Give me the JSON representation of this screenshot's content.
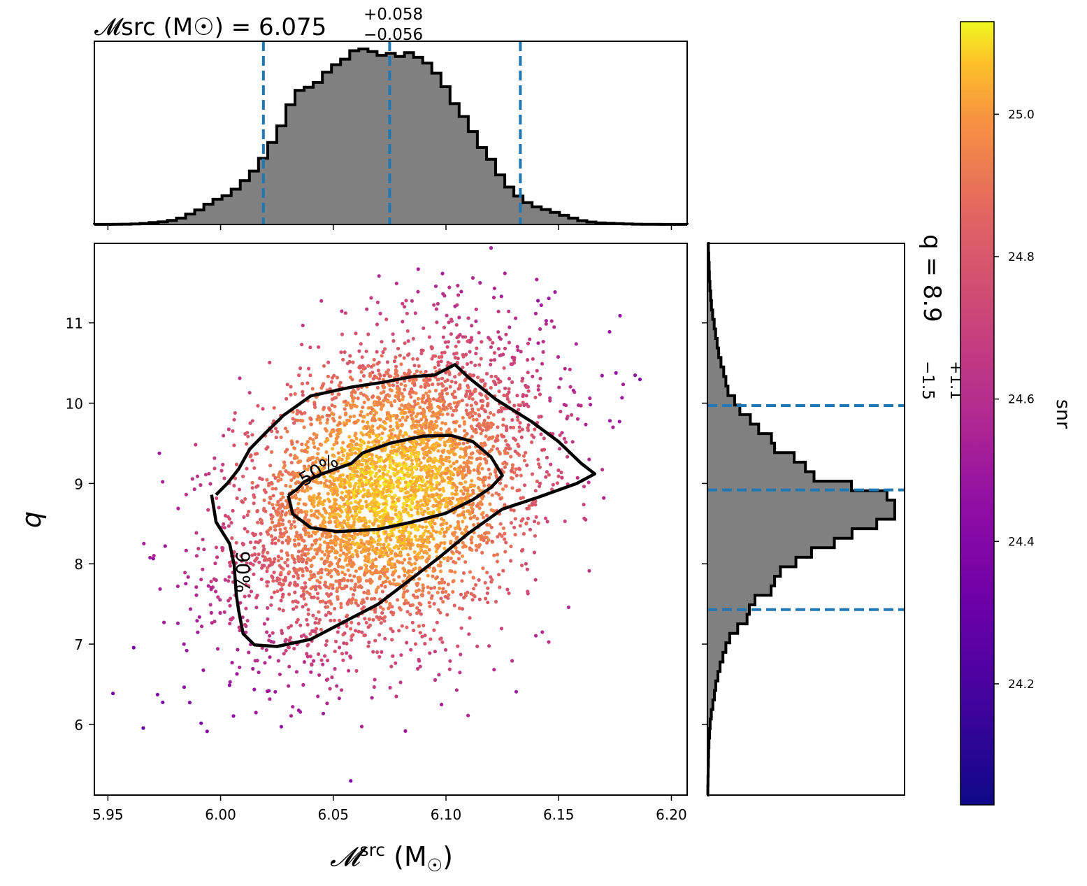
{
  "chart_data": [
    {
      "type": "scatter",
      "xlabel": "𝓜src (M☉)",
      "ylabel": "q",
      "xlim": [
        5.944,
        6.207
      ],
      "ylim": [
        5.12,
        11.99
      ],
      "xticks": [
        {
          "v": 5.95,
          "label": "5.95"
        },
        {
          "v": 6.0,
          "label": "6.00"
        },
        {
          "v": 6.05,
          "label": "6.05"
        },
        {
          "v": 6.1,
          "label": "6.10"
        },
        {
          "v": 6.15,
          "label": "6.15"
        },
        {
          "v": 6.2,
          "label": "6.20"
        }
      ],
      "yticks": [
        {
          "v": 6,
          "label": "6"
        },
        {
          "v": 7,
          "label": "7"
        },
        {
          "v": 8,
          "label": "8"
        },
        {
          "v": 9,
          "label": "9"
        },
        {
          "v": 10,
          "label": "10"
        },
        {
          "v": 11,
          "label": "11"
        }
      ],
      "contours": [
        {
          "level": "50%",
          "label": "50%",
          "points": [
            [
              6.03,
              8.85
            ],
            [
              6.034,
              8.93
            ],
            [
              6.037,
              9.02
            ],
            [
              6.045,
              9.12
            ],
            [
              6.058,
              9.25
            ],
            [
              6.063,
              9.38
            ],
            [
              6.075,
              9.5
            ],
            [
              6.09,
              9.59
            ],
            [
              6.102,
              9.6
            ],
            [
              6.112,
              9.52
            ],
            [
              6.12,
              9.33
            ],
            [
              6.125,
              9.1
            ],
            [
              6.12,
              8.95
            ],
            [
              6.112,
              8.8
            ],
            [
              6.1,
              8.63
            ],
            [
              6.085,
              8.52
            ],
            [
              6.07,
              8.43
            ],
            [
              6.052,
              8.4
            ],
            [
              6.04,
              8.45
            ],
            [
              6.032,
              8.62
            ],
            [
              6.03,
              8.85
            ]
          ]
        },
        {
          "level": "90%",
          "label": "90%",
          "points": [
            [
              5.998,
              8.86
            ],
            [
              6.003,
              9.0
            ],
            [
              6.008,
              9.18
            ],
            [
              6.013,
              9.43
            ],
            [
              6.02,
              9.63
            ],
            [
              6.028,
              9.85
            ],
            [
              6.04,
              10.09
            ],
            [
              6.058,
              10.2
            ],
            [
              6.072,
              10.26
            ],
            [
              6.085,
              10.33
            ],
            [
              6.095,
              10.35
            ],
            [
              6.104,
              10.48
            ],
            [
              6.11,
              10.32
            ],
            [
              6.122,
              10.05
            ],
            [
              6.138,
              9.77
            ],
            [
              6.15,
              9.52
            ],
            [
              6.16,
              9.25
            ],
            [
              6.166,
              9.12
            ],
            [
              6.158,
              9.0
            ],
            [
              6.14,
              8.82
            ],
            [
              6.125,
              8.68
            ],
            [
              6.11,
              8.38
            ],
            [
              6.097,
              8.08
            ],
            [
              6.085,
              7.82
            ],
            [
              6.07,
              7.5
            ],
            [
              6.055,
              7.28
            ],
            [
              6.04,
              7.06
            ],
            [
              6.025,
              6.97
            ],
            [
              6.015,
              6.99
            ],
            [
              6.01,
              7.13
            ],
            [
              6.008,
              7.42
            ],
            [
              6.007,
              7.61
            ],
            [
              6.006,
              7.99
            ],
            [
              6.004,
              8.25
            ],
            [
              5.998,
              8.52
            ],
            [
              5.996,
              8.86
            ]
          ]
        }
      ],
      "scatter_model": {
        "mean": [
          6.075,
          8.9
        ],
        "std": [
          0.034,
          0.95
        ],
        "corr": 0.35,
        "n_points": 4500,
        "color_by": "snr"
      }
    },
    {
      "type": "bar",
      "title": "𝓜src (M☉) = 6.075 +0.058 −0.056",
      "title_main": "𝓜src (M☉) = 6.075",
      "title_plus": "+0.058",
      "title_minus": "−0.056",
      "bin_edges": [
        5.944,
        6.207
      ],
      "values": [
        0.02,
        0.04,
        0.08,
        0.14,
        0.3,
        0.6,
        1.1,
        1.5,
        2.3,
        3.6,
        5.9,
        8.2,
        11.5,
        14.3,
        16.3,
        20,
        24.9,
        30.3,
        37.5,
        46.5,
        55.9,
        67.9,
        76,
        77.8,
        80.5,
        86.3,
        90.6,
        93.7,
        98.5,
        99.5,
        98,
        95.9,
        97,
        95.2,
        97.4,
        94.8,
        91.5,
        85.8,
        78.1,
        68.5,
        61.2,
        52.7,
        43.6,
        37,
        28.1,
        21.2,
        16.1,
        12.4,
        10,
        8.5,
        6.8,
        5.2,
        3.6,
        2.2,
        1.4,
        0.9,
        0.7,
        0.5,
        0.3,
        0.15,
        0.1,
        0.1,
        0.05,
        0.05,
        0.02
      ],
      "quantiles": [
        6.019,
        6.075,
        6.133
      ],
      "color": "#808080",
      "line_color": "#1f77b4"
    },
    {
      "type": "bar",
      "orientation": "horizontal",
      "title": "q = 8.9 +1.1 −1.5",
      "title_main": "q = 8.9",
      "title_plus": "+1.1",
      "title_minus": "−1.5",
      "bin_edges": [
        5.12,
        11.99
      ],
      "values": [
        0.2,
        0.3,
        0.4,
        0.5,
        0.6,
        0.8,
        1.1,
        1.4,
        2.0,
        2.8,
        3.6,
        4.3,
        5.4,
        6.5,
        8.0,
        9.5,
        11.5,
        15.6,
        20.4,
        21.6,
        24.5,
        32.8,
        34.6,
        37.6,
        45.6,
        53.6,
        65.4,
        74.5,
        87.2,
        96.5,
        96.5,
        92.5,
        74.2,
        54.9,
        50.5,
        44.7,
        34.6,
        33,
        26.4,
        22.1,
        16.7,
        14.0,
        10.6,
        9.5,
        8.4,
        7.0,
        5.8,
        5.0,
        4.2,
        3.5,
        2.7,
        2.1,
        1.7,
        1.3,
        1.0,
        0.9,
        0.7,
        0.5
      ],
      "quantiles": [
        7.43,
        8.92,
        9.97
      ],
      "color": "#808080",
      "line_color": "#1f77b4"
    },
    {
      "type": "colorbar",
      "label": "snr",
      "colormap": "plasma",
      "range": [
        24.03,
        25.13
      ],
      "ticks": [
        {
          "v": 24.2,
          "label": "24.2"
        },
        {
          "v": 24.4,
          "label": "24.4"
        },
        {
          "v": 24.6,
          "label": "24.6"
        },
        {
          "v": 24.8,
          "label": "24.8"
        },
        {
          "v": 25.0,
          "label": "25.0"
        }
      ]
    }
  ]
}
